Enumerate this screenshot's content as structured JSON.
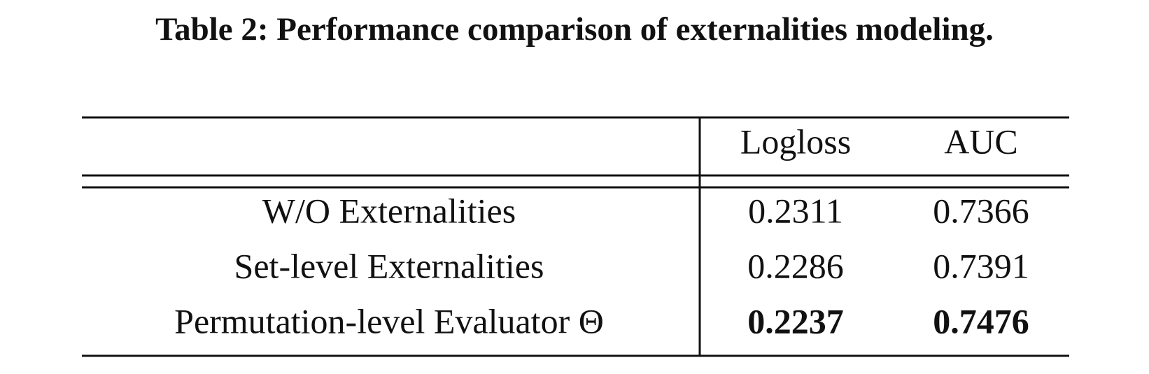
{
  "caption": "Table 2: Performance comparison of externalities modeling.",
  "table": {
    "header": [
      "Logloss",
      "AUC"
    ],
    "rows": [
      [
        "W/O Externalities",
        "0.2311",
        "0.7366"
      ],
      [
        "Set-level Externalities",
        "0.2286",
        "0.7391"
      ],
      [
        "Permutation-level Evaluator Θ",
        "0.2237",
        "0.7476"
      ]
    ]
  }
}
